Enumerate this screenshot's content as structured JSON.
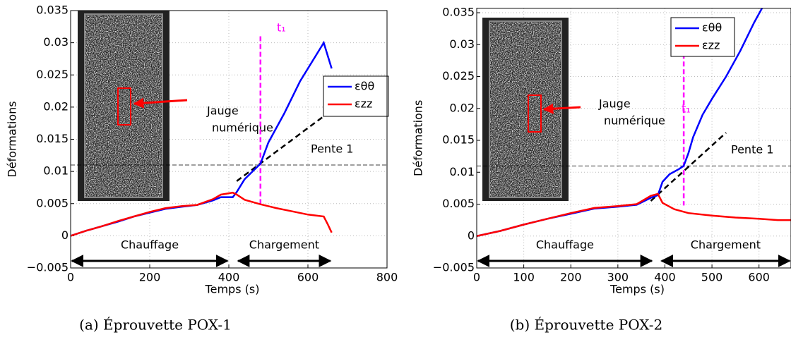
{
  "chart_data": [
    {
      "type": "line",
      "caption": "(a) Éprouvette POX-1",
      "xlabel": "Temps (s)",
      "ylabel": "Déformations",
      "xlim": [
        0,
        800
      ],
      "xticks": [
        0,
        200,
        400,
        600,
        800
      ],
      "ylim": [
        -0.005,
        0.035
      ],
      "yticks": [
        {
          "value": -0.005,
          "label": "−0.005"
        },
        0,
        0.005,
        0.01,
        0.015,
        0.02,
        0.025,
        0.03,
        0.035
      ],
      "grid": true,
      "legend": "upper right",
      "series": [
        {
          "name": "εθθ",
          "color": "#0000ff",
          "x": [
            0,
            40,
            80,
            120,
            160,
            200,
            240,
            280,
            320,
            360,
            380,
            400,
            410,
            420,
            440,
            460,
            480,
            500,
            540,
            580,
            620,
            640,
            650,
            660
          ],
          "values": [
            0,
            0.0008,
            0.0015,
            0.0022,
            0.003,
            0.0036,
            0.0042,
            0.0045,
            0.0048,
            0.0055,
            0.006,
            0.006,
            0.006,
            0.0068,
            0.0088,
            0.01,
            0.0112,
            0.0145,
            0.019,
            0.024,
            0.028,
            0.03,
            0.028,
            0.026
          ]
        },
        {
          "name": "εzz",
          "color": "#ff0000",
          "x": [
            0,
            40,
            80,
            120,
            160,
            200,
            240,
            280,
            320,
            360,
            380,
            400,
            410,
            420,
            440,
            480,
            520,
            560,
            600,
            640,
            650,
            660
          ],
          "values": [
            0,
            0.0008,
            0.0015,
            0.0023,
            0.003,
            0.0037,
            0.0043,
            0.0046,
            0.0048,
            0.0057,
            0.0064,
            0.0066,
            0.0067,
            0.0064,
            0.0056,
            0.0049,
            0.0043,
            0.0038,
            0.0033,
            0.003,
            0.0018,
            0.0005
          ]
        }
      ],
      "hline": 0.011,
      "t1": 480,
      "t1_label": "t₁",
      "slope": {
        "label": "Pente 1",
        "x": [
          420,
          660
        ],
        "y": [
          0.0085,
          0.0195
        ]
      },
      "gauge_label": [
        "Jauge",
        "numérique"
      ],
      "phases": [
        {
          "label": "Chauffage",
          "start": 0,
          "end": 400
        },
        {
          "label": "Chargement",
          "start": 420,
          "end": 660
        }
      ]
    },
    {
      "type": "line",
      "caption": "(b) Éprouvette POX-2",
      "xlabel": "Temps (s)",
      "ylabel": "Déformations",
      "xlim": [
        0,
        668
      ],
      "xticks": [
        0,
        100,
        200,
        300,
        400,
        500,
        600
      ],
      "ylim": [
        -0.005,
        0.0357
      ],
      "yticks": [
        {
          "value": -0.005,
          "label": "−0.005"
        },
        0,
        0.005,
        0.01,
        0.015,
        0.02,
        0.025,
        0.03,
        0.035
      ],
      "grid": true,
      "legend": "upper right",
      "series": [
        {
          "name": "εθθ",
          "color": "#0000ff",
          "x": [
            0,
            50,
            100,
            150,
            200,
            250,
            300,
            340,
            370,
            385,
            395,
            410,
            430,
            440,
            450,
            460,
            480,
            500,
            530,
            560,
            590,
            610
          ],
          "values": [
            0,
            0.0008,
            0.0018,
            0.0027,
            0.0035,
            0.0043,
            0.0046,
            0.0049,
            0.006,
            0.0064,
            0.0085,
            0.0097,
            0.0105,
            0.011,
            0.013,
            0.0155,
            0.019,
            0.0215,
            0.025,
            0.029,
            0.0335,
            0.0362
          ]
        },
        {
          "name": "εzz",
          "color": "#ff0000",
          "x": [
            0,
            50,
            100,
            150,
            200,
            250,
            300,
            340,
            370,
            385,
            395,
            420,
            450,
            500,
            550,
            600,
            640,
            668
          ],
          "values": [
            0,
            0.0008,
            0.0018,
            0.0027,
            0.0036,
            0.0044,
            0.0047,
            0.005,
            0.0063,
            0.0066,
            0.0052,
            0.0042,
            0.0036,
            0.0032,
            0.0029,
            0.0027,
            0.0025,
            0.0025
          ]
        }
      ],
      "hline": 0.011,
      "t1": 440,
      "t1_label": "t₁",
      "slope": {
        "label": "Pente 1",
        "x": [
          370,
          530
        ],
        "y": [
          0.0055,
          0.0162
        ]
      },
      "gauge_label": [
        "Jauge",
        "numérique"
      ],
      "phases": [
        {
          "label": "Chauffage",
          "start": 0,
          "end": 375
        },
        {
          "label": "Chargement",
          "start": 390,
          "end": 668
        }
      ]
    }
  ]
}
